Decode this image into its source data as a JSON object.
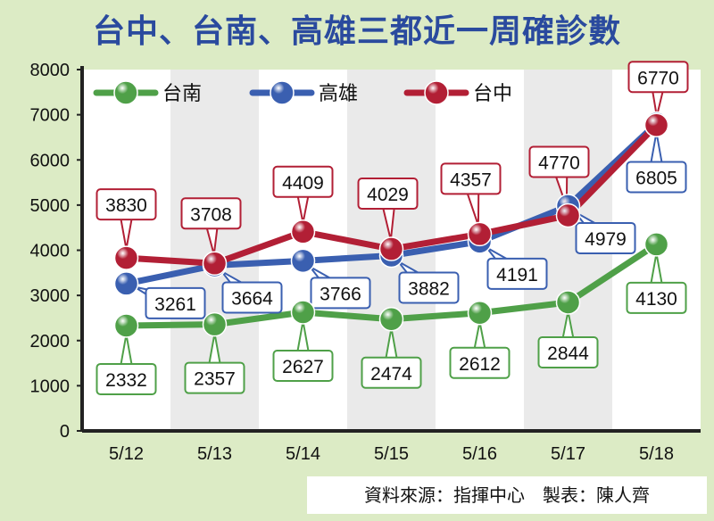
{
  "title": "台中、台南、高雄三都近一周確診數",
  "source_note": "資料來源：指揮中心　製表：陳人齊",
  "colors": {
    "background": "#dcebc5",
    "title": "#2a4a9e",
    "tainan": "#4fa048",
    "kaohsiung": "#3a5fb0",
    "taichung": "#b21f35"
  },
  "chart_data": {
    "type": "line",
    "categories": [
      "5/12",
      "5/13",
      "5/14",
      "5/15",
      "5/16",
      "5/17",
      "5/18"
    ],
    "ylim": [
      0,
      8000
    ],
    "yticks": [
      0,
      1000,
      2000,
      3000,
      4000,
      5000,
      6000,
      7000,
      8000
    ],
    "grid": false,
    "legend_position": "top-left",
    "series": [
      {
        "name": "台南",
        "color": "#4fa048",
        "values": [
          2332,
          2357,
          2627,
          2474,
          2612,
          2844,
          4130
        ]
      },
      {
        "name": "高雄",
        "color": "#3a5fb0",
        "values": [
          3261,
          3664,
          3766,
          3882,
          4191,
          4979,
          6805
        ]
      },
      {
        "name": "台中",
        "color": "#b21f35",
        "values": [
          3830,
          3708,
          4409,
          4029,
          4357,
          4770,
          6770
        ]
      }
    ]
  }
}
